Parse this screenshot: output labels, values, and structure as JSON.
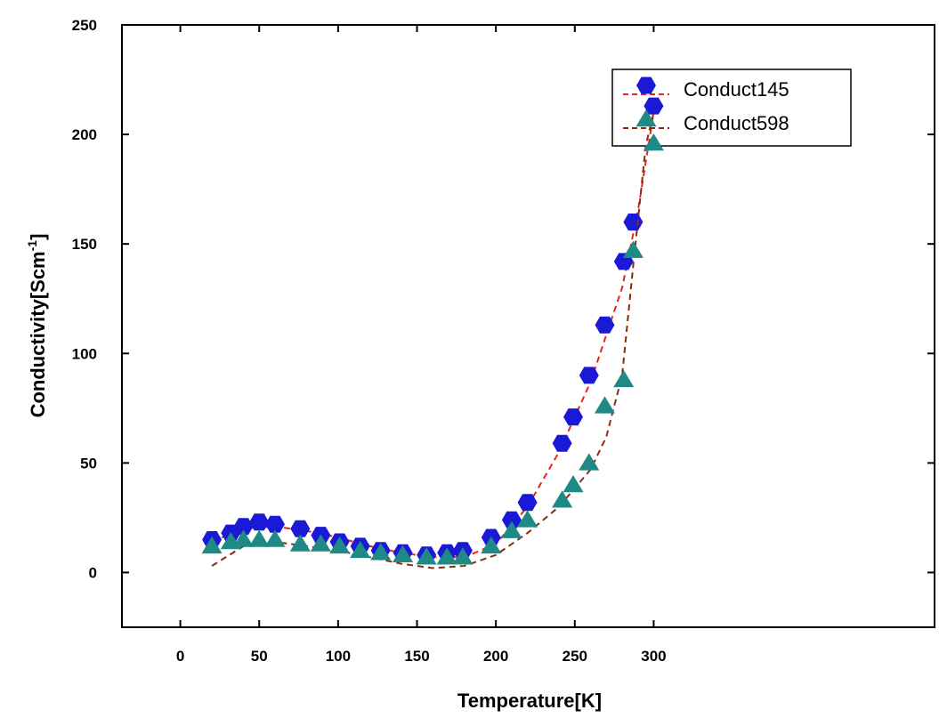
{
  "chart_data": {
    "type": "scatter",
    "x_label": "Temperature[K]",
    "y_label": "Conductivity[Scm",
    "y_label_sup": "-1",
    "y_label_end": "]",
    "xlim": [
      -37,
      478
    ],
    "ylim": [
      -25,
      250
    ],
    "xticks": [
      0,
      50,
      100,
      150,
      200,
      250,
      300
    ],
    "yticks": [
      0,
      50,
      100,
      150,
      200,
      250
    ],
    "legend": "top-right",
    "series": [
      {
        "name": "Conduct145",
        "color": "#1a1ad6",
        "marker": "hexagon",
        "fit_color": "#e8241c",
        "x": [
          20,
          32,
          40,
          50,
          60,
          76,
          89,
          101,
          114,
          127,
          141,
          156,
          169,
          179,
          197,
          210,
          220,
          242,
          249,
          259,
          269,
          281,
          287,
          300
        ],
        "values": [
          15,
          18,
          21,
          23,
          22,
          20,
          17,
          14,
          12,
          10,
          9,
          8,
          9,
          10,
          16,
          24,
          32,
          59,
          71,
          90,
          113,
          142,
          160,
          213
        ],
        "fit_x": [
          20,
          40,
          60,
          80,
          100,
          120,
          140,
          160,
          180,
          200,
          220,
          240,
          260,
          280,
          290,
          300
        ],
        "fit_values": [
          14,
          20,
          21,
          19,
          16,
          12,
          9,
          7,
          7,
          13,
          30,
          55,
          87,
          130,
          165,
          210
        ]
      },
      {
        "name": "Conduct598",
        "color": "#1f8a85",
        "marker": "triangle",
        "fit_color": "#8b2a0c",
        "x": [
          20,
          32,
          40,
          50,
          60,
          76,
          89,
          101,
          114,
          127,
          141,
          156,
          169,
          179,
          197,
          210,
          220,
          242,
          249,
          259,
          269,
          281,
          287,
          300
        ],
        "values": [
          12,
          14,
          15,
          15,
          15,
          13,
          13,
          12,
          10,
          9,
          8,
          7,
          7,
          7,
          12,
          19,
          24,
          33,
          40,
          50,
          76,
          88,
          147,
          196
        ],
        "fit_x": [
          20,
          40,
          60,
          80,
          100,
          120,
          140,
          160,
          180,
          200,
          220,
          240,
          260,
          270,
          280,
          287,
          295,
          300
        ],
        "fit_values": [
          3,
          12,
          14,
          12,
          10,
          7,
          4,
          2,
          3,
          8,
          18,
          30,
          47,
          62,
          90,
          140,
          195,
          210
        ]
      }
    ]
  }
}
